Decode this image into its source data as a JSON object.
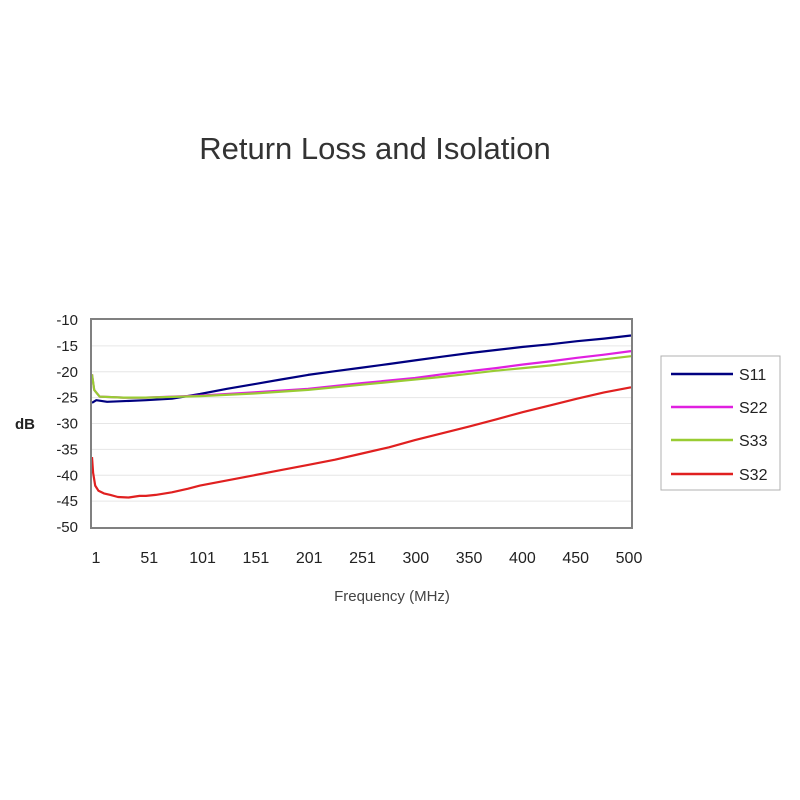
{
  "chart_data": {
    "type": "line",
    "title": "Return Loss and Isolation",
    "xlabel": "Frequency (MHz)",
    "ylabel": "dB",
    "x_tick_labels": [
      "1",
      "51",
      "101",
      "151",
      "201",
      "251",
      "300",
      "350",
      "400",
      "450",
      "500"
    ],
    "y_tick_labels": [
      "-10",
      "-15",
      "-20",
      "-25",
      "-30",
      "-35",
      "-40",
      "-45",
      "-50"
    ],
    "y_ticks": [
      -10,
      -15,
      -20,
      -25,
      -30,
      -35,
      -40,
      -45,
      -50
    ],
    "xlim": [
      1,
      500
    ],
    "ylim": [
      -50,
      -10
    ],
    "grid": "horizontal",
    "legend_position": "right",
    "series": [
      {
        "name": "S11",
        "color": "#000080",
        "x": [
          1,
          5,
          15,
          51,
          75,
          101,
          126,
          151,
          176,
          201,
          226,
          251,
          276,
          300,
          325,
          350,
          375,
          400,
          425,
          450,
          475,
          500
        ],
        "y": [
          -26,
          -25.5,
          -25.8,
          -25.5,
          -25.2,
          -24.3,
          -23.3,
          -22.4,
          -21.5,
          -20.6,
          -19.9,
          -19.2,
          -18.5,
          -17.8,
          -17.1,
          -16.4,
          -15.8,
          -15.2,
          -14.7,
          -14.1,
          -13.6,
          -13
        ]
      },
      {
        "name": "S22",
        "color": "#e020e0",
        "x": [
          1,
          3,
          8,
          30,
          51,
          101,
          151,
          201,
          251,
          300,
          325,
          350,
          375,
          400,
          425,
          450,
          475,
          500
        ],
        "y": [
          -20.5,
          -23.5,
          -24.8,
          -25,
          -25,
          -24.6,
          -24,
          -23.3,
          -22.2,
          -21.2,
          -20.5,
          -19.9,
          -19.3,
          -18.6,
          -18,
          -17.3,
          -16.7,
          -16
        ]
      },
      {
        "name": "S33",
        "color": "#99cc33",
        "x": [
          1,
          3,
          8,
          30,
          51,
          101,
          151,
          201,
          251,
          300,
          325,
          350,
          375,
          400,
          425,
          450,
          475,
          500
        ],
        "y": [
          -20.5,
          -23.5,
          -24.8,
          -25,
          -25,
          -24.7,
          -24.2,
          -23.5,
          -22.5,
          -21.5,
          -21,
          -20.4,
          -19.8,
          -19.3,
          -18.8,
          -18.2,
          -17.6,
          -17
        ]
      },
      {
        "name": "S32",
        "color": "#e02020",
        "x": [
          1,
          2,
          4,
          7,
          12,
          18,
          25,
          35,
          45,
          51,
          60,
          75,
          90,
          101,
          126,
          151,
          176,
          201,
          226,
          251,
          276,
          300,
          325,
          350,
          375,
          400,
          425,
          450,
          475,
          500
        ],
        "y": [
          -36.5,
          -39.5,
          -42,
          -43,
          -43.5,
          -43.8,
          -44.2,
          -44.3,
          -44,
          -44,
          -43.8,
          -43.3,
          -42.6,
          -42,
          -41,
          -40,
          -39,
          -38,
          -37,
          -35.8,
          -34.6,
          -33.2,
          -31.9,
          -30.6,
          -29.2,
          -27.8,
          -26.5,
          -25.2,
          -24,
          -23
        ]
      }
    ]
  }
}
